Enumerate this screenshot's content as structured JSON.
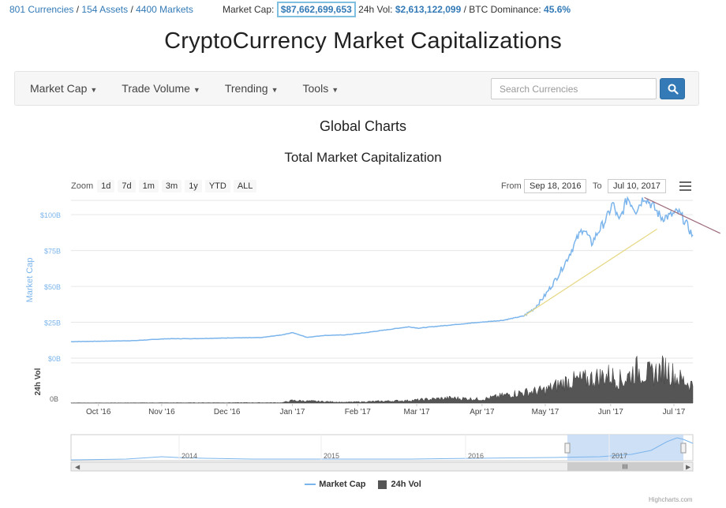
{
  "topbar": {
    "currencies": "801 Currencies",
    "assets": "154 Assets",
    "markets": "4400 Markets",
    "market_cap_label": "Market Cap:",
    "market_cap_value": "$87,662,699,653",
    "vol_label": "24h Vol:",
    "vol_value": "$2,613,122,099",
    "dominance_label": "BTC Dominance:",
    "dominance_value": "45.6%"
  },
  "site_title": "CryptoCurrency Market Capitalizations",
  "nav": {
    "items": [
      {
        "label": "Market Cap"
      },
      {
        "label": "Trade Volume"
      },
      {
        "label": "Trending"
      },
      {
        "label": "Tools"
      }
    ],
    "search_placeholder": "Search Currencies"
  },
  "section_title": "Global Charts",
  "chart_title": "Total Market Capitalization",
  "zoom": {
    "label": "Zoom",
    "buttons": [
      "1d",
      "7d",
      "1m",
      "3m",
      "1y",
      "YTD",
      "ALL"
    ]
  },
  "range": {
    "from_label": "From",
    "from_value": "Sep 18, 2016",
    "to_label": "To",
    "to_value": "Jul 10, 2017"
  },
  "legend": {
    "market_cap": "Market Cap",
    "vol": "24h Vol"
  },
  "credits": "Highcharts.com",
  "colors": {
    "accent": "#337ab7",
    "series_line": "#7cb5ec",
    "volume": "#555555",
    "trend_up": "#e6d884",
    "trend_down": "#9c6a7a",
    "navigator_sel": "#c5daf3"
  },
  "chart_data": {
    "type": "line",
    "ylabel": "Market Cap",
    "ylabel2": "24h Vol",
    "y_ticks": [
      "$0B",
      "$25B",
      "$50B",
      "$75B",
      "$100B"
    ],
    "y_ticks_values": [
      0,
      25,
      50,
      75,
      100
    ],
    "ylim": [
      0,
      110
    ],
    "vol_ticks": [
      "0B"
    ],
    "x_ticks": [
      "Oct '16",
      "Nov '16",
      "Dec '16",
      "Jan '17",
      "Feb '17",
      "Mar '17",
      "Apr '17",
      "May '17",
      "Jun '17",
      "Jul '17"
    ],
    "x_ticks_days": [
      13,
      43,
      74,
      105,
      136,
      164,
      195,
      225,
      256,
      286
    ],
    "x_range_days": [
      0,
      295
    ],
    "x_range_labels": [
      "Sep 18, 2016",
      "Jul 10, 2017"
    ],
    "series": [
      {
        "name": "Market Cap",
        "x_days": [
          0,
          15,
          30,
          45,
          60,
          75,
          90,
          100,
          105,
          112,
          120,
          130,
          140,
          150,
          160,
          165,
          175,
          185,
          195,
          205,
          215,
          220,
          225,
          230,
          235,
          240,
          243,
          247,
          250,
          254,
          257,
          260,
          264,
          268,
          272,
          276,
          280,
          284,
          288,
          291,
          295
        ],
        "values": [
          11.5,
          11.8,
          12.2,
          13.5,
          13.6,
          14.1,
          14.3,
          16.2,
          17.8,
          14.5,
          15.8,
          16.2,
          17.8,
          19.8,
          21.8,
          20.9,
          22.4,
          23.8,
          25.1,
          26.4,
          29.5,
          35,
          44,
          55,
          68,
          83,
          91,
          80,
          88,
          97,
          108,
          95,
          112,
          103,
          113,
          106,
          98,
          99,
          102,
          96,
          85
        ]
      },
      {
        "name": "24h Vol",
        "x_days": [
          0,
          60,
          100,
          105,
          130,
          160,
          180,
          195,
          210,
          225,
          235,
          245,
          255,
          262,
          268,
          275,
          282,
          288,
          295
        ],
        "values": [
          0.05,
          0.08,
          0.1,
          0.6,
          0.2,
          0.6,
          1.2,
          0.9,
          2.2,
          3.0,
          5.0,
          5.5,
          6.5,
          5.2,
          7.8,
          6.6,
          8.1,
          5.8,
          4.2
        ]
      }
    ],
    "trend_lines": [
      {
        "x_days": [
          215,
          278
        ],
        "values": [
          29.5,
          90
        ]
      },
      {
        "x_days": [
          272,
          308
        ],
        "values": [
          112,
          87
        ]
      }
    ],
    "navigator": {
      "x_ticks": [
        "2014",
        "2015",
        "2016",
        "2017"
      ]
    }
  }
}
